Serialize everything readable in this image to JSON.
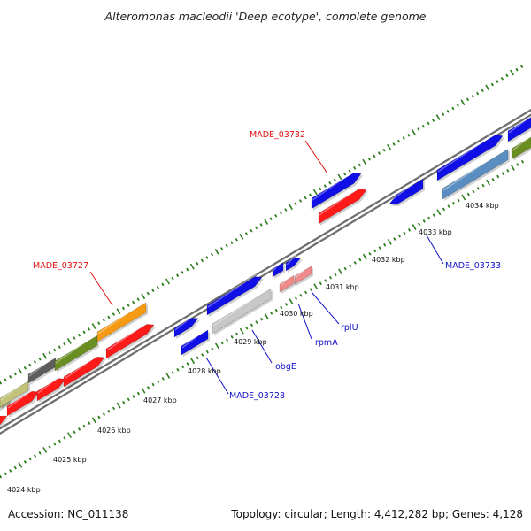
{
  "title": "Alteromonas macleodii 'Deep ecotype', complete genome",
  "footer": {
    "accession": "Accession: NC_011138",
    "topology": "Topology: circular; Length: 4,412,282 bp; Genes: 4,128"
  },
  "colors": {
    "backbone": "#8c8c8c",
    "tick": "#2e7d1e",
    "gene_blue": "#1010e6",
    "gene_red": "#ff1a1a",
    "gene_pink": "#ee8a8a",
    "gene_orange": "#f59a12",
    "gene_olive": "#6b8e23",
    "gene_gray": "#5d5d5d",
    "gene_khaki": "#c2c27a",
    "gene_steel": "#5b8ec0",
    "gene_lightgray": "#c8c8c8",
    "label_red": "#e01010",
    "label_blue": "#1010c8"
  },
  "scale_ticks": [
    {
      "label": "4024 kbp"
    },
    {
      "label": "4025 kbp"
    },
    {
      "label": "4026 kbp"
    },
    {
      "label": "4027 kbp"
    },
    {
      "label": "4028 kbp"
    },
    {
      "label": "4029 kbp"
    },
    {
      "label": "4030 kbp"
    },
    {
      "label": "4031 kbp"
    },
    {
      "label": "4032 kbp"
    },
    {
      "label": "4033 kbp"
    },
    {
      "label": "4034 kbp"
    }
  ],
  "gene_labels": [
    {
      "name": "MADE_03732",
      "color": "red"
    },
    {
      "name": "MADE_03727",
      "color": "red"
    },
    {
      "name": "MADE_03733",
      "color": "blue"
    },
    {
      "name": "rplU",
      "color": "blue"
    },
    {
      "name": "rpmA",
      "color": "blue"
    },
    {
      "name": "obgE",
      "color": "blue"
    },
    {
      "name": "MADE_03728",
      "color": "blue"
    }
  ]
}
